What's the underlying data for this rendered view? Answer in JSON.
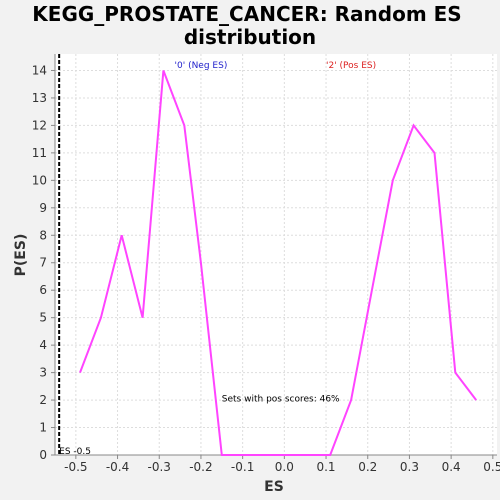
{
  "chart_data": {
    "type": "line",
    "title_line1": "KEGG_PROSTATE_CANCER: Random ES",
    "title_line2": "distribution",
    "xlabel": "ES",
    "ylabel": "P(ES)",
    "xlim": [
      -0.55,
      0.51
    ],
    "ylim": [
      0,
      14.6
    ],
    "xticks": [
      -0.5,
      -0.4,
      -0.3,
      -0.2,
      -0.1,
      0.0,
      0.1,
      0.2,
      0.3,
      0.4,
      0.5
    ],
    "xtick_labels": [
      "-0.5",
      "-0.4",
      "-0.3",
      "-0.2",
      "-0.1",
      "0.0",
      "0.1",
      "0.2",
      "0.3",
      "0.4",
      "0.5"
    ],
    "yticks": [
      0,
      1,
      2,
      3,
      4,
      5,
      6,
      7,
      8,
      9,
      10,
      11,
      12,
      13,
      14
    ],
    "ytick_labels": [
      "0",
      "1",
      "2",
      "3",
      "4",
      "5",
      "6",
      "7",
      "8",
      "9",
      "10",
      "11",
      "12",
      "13",
      "14"
    ],
    "grid": true,
    "series": [
      {
        "color": "#ff44ff",
        "x": [
          -0.49,
          -0.44,
          -0.39,
          -0.34,
          -0.29,
          -0.24,
          -0.2,
          -0.15,
          -0.1,
          -0.05,
          0.0,
          0.05,
          0.11,
          0.16,
          0.21,
          0.26,
          0.31,
          0.36,
          0.41,
          0.46
        ],
        "y": [
          3,
          5,
          8,
          5,
          14,
          12,
          7,
          0,
          0,
          0,
          0,
          0,
          0,
          2,
          6,
          10,
          12,
          11,
          3,
          2
        ]
      }
    ],
    "marker": {
      "x": -0.54,
      "label": "ES -0.5"
    },
    "annotations": {
      "neg": {
        "text": "'0' (Neg ES)",
        "color": "#2222cc",
        "x": -0.2
      },
      "pos": {
        "text": "'2' (Pos ES)",
        "color": "#dd2222",
        "x": 0.16
      },
      "pos_scores": {
        "text": "Sets with pos scores: 46%",
        "x": -0.15,
        "y": 1.95
      }
    }
  }
}
